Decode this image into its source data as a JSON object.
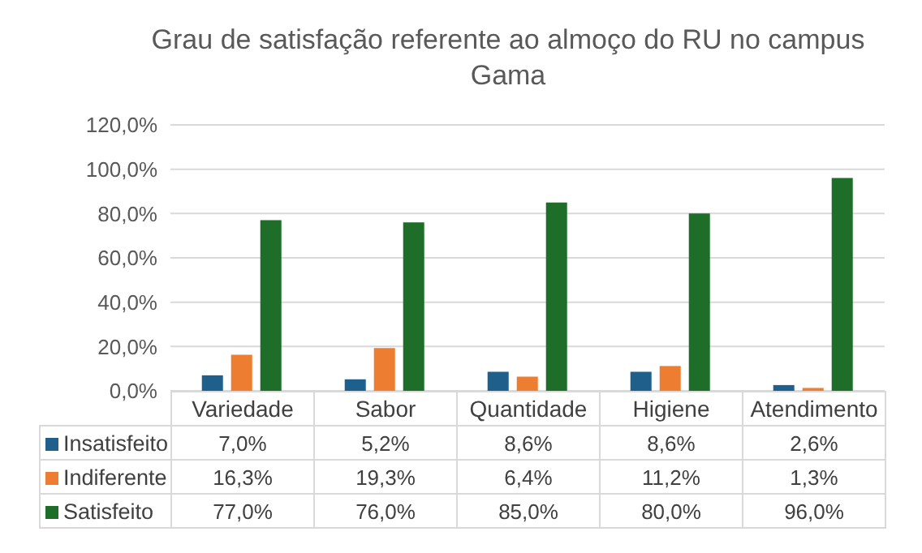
{
  "chart_data": {
    "type": "bar",
    "title": "Grau de satisfação referente ao almoço do RU no campus Gama",
    "categories": [
      "Variedade",
      "Sabor",
      "Quantidade",
      "Higiene",
      "Atendimento"
    ],
    "series": [
      {
        "name": "Insatisfeito",
        "color": "#1f5f8b",
        "values": [
          7.0,
          5.2,
          8.6,
          8.6,
          2.6
        ],
        "value_labels": [
          "7,0%",
          "5,2%",
          "8,6%",
          "8,6%",
          "2,6%"
        ]
      },
      {
        "name": "Indiferente",
        "color": "#ed7d31",
        "values": [
          16.3,
          19.3,
          6.4,
          11.2,
          1.3
        ],
        "value_labels": [
          "16,3%",
          "19,3%",
          "6,4%",
          "11,2%",
          "1,3%"
        ]
      },
      {
        "name": "Satisfeito",
        "color": "#1e6e2a",
        "values": [
          77.0,
          76.0,
          85.0,
          80.0,
          96.0
        ],
        "value_labels": [
          "77,0%",
          "76,0%",
          "85,0%",
          "80,0%",
          "96,0%"
        ]
      }
    ],
    "ylim": [
      0,
      120
    ],
    "yticks": [
      {
        "value": 0,
        "label": "0,0%"
      },
      {
        "value": 20,
        "label": "20,0%"
      },
      {
        "value": 40,
        "label": "40,0%"
      },
      {
        "value": 60,
        "label": "60,0%"
      },
      {
        "value": 80,
        "label": "80,0%"
      },
      {
        "value": 100,
        "label": "100,0%"
      },
      {
        "value": 120,
        "label": "120,0%"
      }
    ],
    "grid": "y",
    "legend": "bottom"
  }
}
